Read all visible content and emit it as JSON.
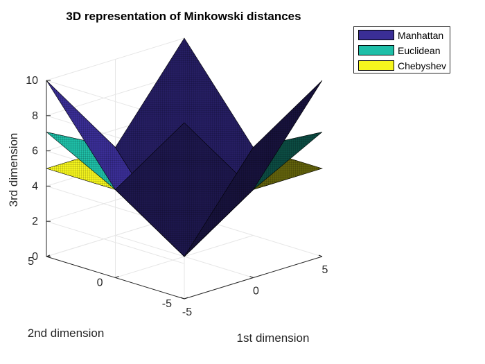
{
  "chart_data": {
    "type": "surface",
    "title": "3D representation of Minkowski distances",
    "xlabel": "1st dimension",
    "ylabel": "2nd dimension",
    "zlabel": "3rd dimension",
    "xlim": [
      -5,
      5
    ],
    "ylim": [
      -5,
      5
    ],
    "zlim": [
      0,
      10
    ],
    "xticks": [
      "-5",
      "0",
      "5"
    ],
    "yticks": [
      "-5",
      "0",
      "5"
    ],
    "zticks": [
      "0",
      "2",
      "4",
      "6",
      "8",
      "10"
    ],
    "grid": true,
    "legend_position": "top-right outside",
    "series": [
      {
        "name": "Manhattan",
        "formula": "|x|+|y|",
        "color": "#3a2e96",
        "corner_value": 10,
        "center_value": 0
      },
      {
        "name": "Euclidean",
        "formula": "sqrt(x^2+y^2)",
        "color": "#1fbfa8",
        "corner_value": 7.07,
        "center_value": 0
      },
      {
        "name": "Chebyshev",
        "formula": "max(|x|,|y|)",
        "color": "#f5f51e",
        "corner_value": 5,
        "center_value": 0
      }
    ]
  }
}
